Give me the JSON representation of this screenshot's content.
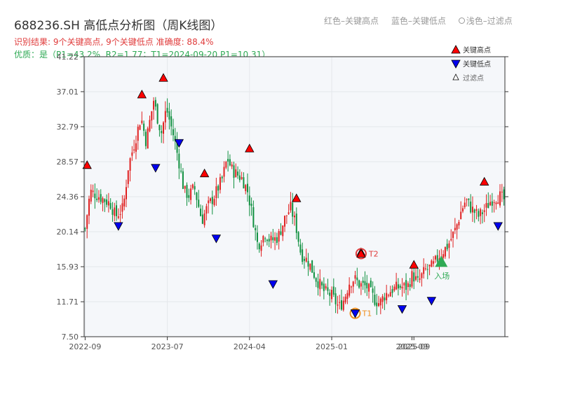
{
  "header": {
    "title": "688236.SH 高低点分析图（周K线图）",
    "subtitle_red": "红色–关键高点",
    "subtitle_blue": "蓝色–关键低点",
    "subtitle_light": "浅色–过滤点",
    "result": "识别结果: 9个关键高点, 9个关键低点  准确度: 88.4%",
    "quality": "优质：是（P1=43.2%, R2=1.77；T1=2024-09-20 P1=10.31）"
  },
  "legend": {
    "high": "关键高点",
    "low": "关键低点",
    "filtered": "过滤点"
  },
  "colors": {
    "up": "#e02020",
    "down": "#109040",
    "high_marker": "#ff0000",
    "low_marker": "#0000ee",
    "t_circle": "#f09020",
    "entry": "#2faa55",
    "plot_bg": "#f5f7fa",
    "grid": "#e4e7eb"
  },
  "annotations": {
    "t1": "T1",
    "t2": "T2",
    "entry": "入场"
  },
  "chart_data": {
    "type": "candlestick",
    "y_ticks": [
      "7.50",
      "11.71",
      "15.93",
      "20.14",
      "24.36",
      "28.57",
      "32.79",
      "37.01",
      "41.22"
    ],
    "ylim": [
      7.5,
      41.22
    ],
    "x_ticks": [
      {
        "label": "2022-09",
        "week": 0
      },
      {
        "label": "2023-07",
        "week": 42
      },
      {
        "label": "2024-04",
        "week": 84
      },
      {
        "label": "2025-01",
        "week": 126
      },
      {
        "label": "2025-09",
        "week": 167
      },
      {
        "label": "2025-09",
        "week": 168
      }
    ],
    "anchors": [
      [
        0,
        20.5
      ],
      [
        2,
        25.0
      ],
      [
        5,
        24.5
      ],
      [
        10,
        23.5
      ],
      [
        12,
        22.0
      ],
      [
        15,
        23.0
      ],
      [
        17,
        28.0
      ],
      [
        20,
        31.5
      ],
      [
        22,
        34.0
      ],
      [
        24,
        31.0
      ],
      [
        27,
        36.0
      ],
      [
        28,
        34.5
      ],
      [
        30,
        32.0
      ],
      [
        32,
        35.0
      ],
      [
        35,
        31.5
      ],
      [
        37,
        28.5
      ],
      [
        39,
        25.0
      ],
      [
        41,
        24.5
      ],
      [
        43,
        25.5
      ],
      [
        46,
        21.5
      ],
      [
        48,
        23.0
      ],
      [
        51,
        24.5
      ],
      [
        54,
        26.5
      ],
      [
        56,
        29.0
      ],
      [
        58,
        27.5
      ],
      [
        60,
        27.0
      ],
      [
        62,
        26.5
      ],
      [
        64,
        25.0
      ],
      [
        66,
        22.0
      ],
      [
        68,
        18.5
      ],
      [
        71,
        20.0
      ],
      [
        73,
        19.0
      ],
      [
        76,
        19.5
      ],
      [
        79,
        22.0
      ],
      [
        81,
        23.0
      ],
      [
        83,
        21.0
      ],
      [
        85,
        17.5
      ],
      [
        88,
        16.5
      ],
      [
        91,
        14.5
      ],
      [
        94,
        13.0
      ],
      [
        97,
        12.5
      ],
      [
        100,
        11.0
      ],
      [
        102,
        12.0
      ],
      [
        104,
        14.0
      ],
      [
        106,
        14.5
      ],
      [
        108,
        13.8
      ],
      [
        111,
        13.5
      ],
      [
        114,
        12.0
      ],
      [
        116,
        11.5
      ],
      [
        118,
        12.5
      ],
      [
        121,
        13.2
      ],
      [
        124,
        13.5
      ],
      [
        127,
        13.5
      ],
      [
        129,
        15.0
      ],
      [
        131,
        14.0
      ],
      [
        134,
        15.5
      ],
      [
        137,
        16.0
      ],
      [
        140,
        17.5
      ],
      [
        143,
        18.5
      ],
      [
        146,
        20.5
      ],
      [
        148,
        22.5
      ],
      [
        150,
        24.0
      ],
      [
        152,
        23.0
      ],
      [
        155,
        22.0
      ],
      [
        158,
        23.0
      ],
      [
        160,
        24.0
      ],
      [
        163,
        24.5
      ],
      [
        165,
        24.0
      ]
    ],
    "key_highs": [
      {
        "week": 1,
        "price": 28.0
      },
      {
        "week": 29,
        "price": 36.5
      },
      {
        "week": 40,
        "price": 38.5
      },
      {
        "week": 61,
        "price": 27.0
      },
      {
        "week": 84,
        "price": 30.0
      },
      {
        "week": 108,
        "price": 24.0
      },
      {
        "week": 141,
        "price": 17.5
      },
      {
        "week": 168,
        "price": 16.0
      },
      {
        "week": 204,
        "price": 26.0
      }
    ],
    "key_lows": [
      {
        "week": 17,
        "price": 21.0
      },
      {
        "week": 36,
        "price": 28.0
      },
      {
        "week": 48,
        "price": 31.0
      },
      {
        "week": 67,
        "price": 19.5
      },
      {
        "week": 96,
        "price": 14.0
      },
      {
        "week": 138,
        "price": 10.5
      },
      {
        "week": 162,
        "price": 11.0
      },
      {
        "week": 177,
        "price": 12.0
      },
      {
        "week": 211,
        "price": 21.0
      }
    ],
    "t1": {
      "week": 138,
      "price": 10.31
    },
    "t2": {
      "week": 141,
      "price": 17.5
    },
    "entry": {
      "week": 182,
      "price": 16.5
    }
  }
}
